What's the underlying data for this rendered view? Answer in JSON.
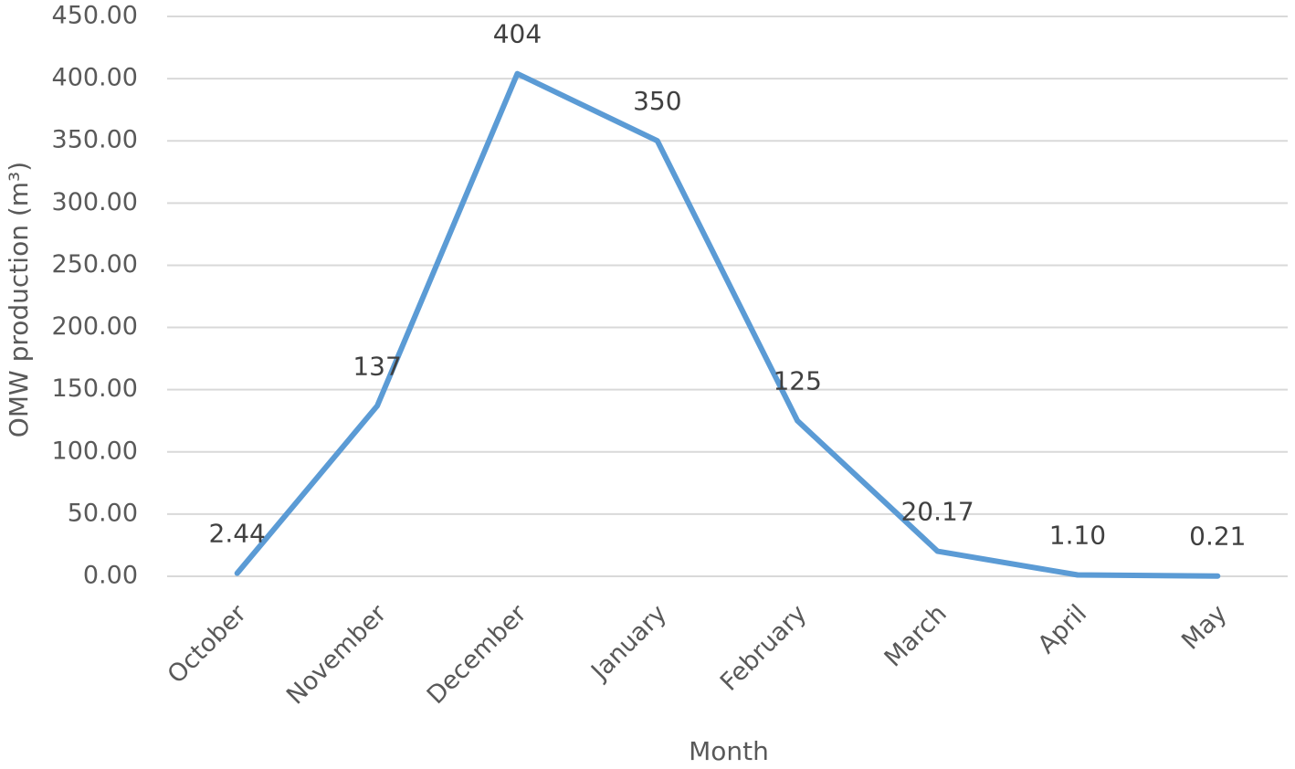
{
  "chart_data": {
    "type": "line",
    "y_label": "OMW production (m³)",
    "x_label": "Month",
    "categories": [
      "October",
      "November",
      "December",
      "January",
      "February",
      "March",
      "April",
      "May"
    ],
    "values": [
      2.44,
      137,
      404,
      350,
      125,
      20.17,
      1.1,
      0.21
    ],
    "value_labels": [
      "2.44",
      "137",
      "404",
      "350",
      "125",
      "20.17",
      "1.10",
      "0.21"
    ],
    "color": "#5b9bd5",
    "ylim": [
      0,
      450
    ],
    "yticks": [
      {
        "value": 0,
        "label": "0.00"
      },
      {
        "value": 50,
        "label": "50.00"
      },
      {
        "value": 100,
        "label": "100.00"
      },
      {
        "value": 150,
        "label": "150.00"
      },
      {
        "value": 200,
        "label": "200.00"
      },
      {
        "value": 250,
        "label": "250.00"
      },
      {
        "value": 300,
        "label": "300.00"
      },
      {
        "value": 350,
        "label": "350.00"
      },
      {
        "value": 400,
        "label": "400.00"
      },
      {
        "value": 450,
        "label": "450.00"
      }
    ],
    "grid": true
  }
}
